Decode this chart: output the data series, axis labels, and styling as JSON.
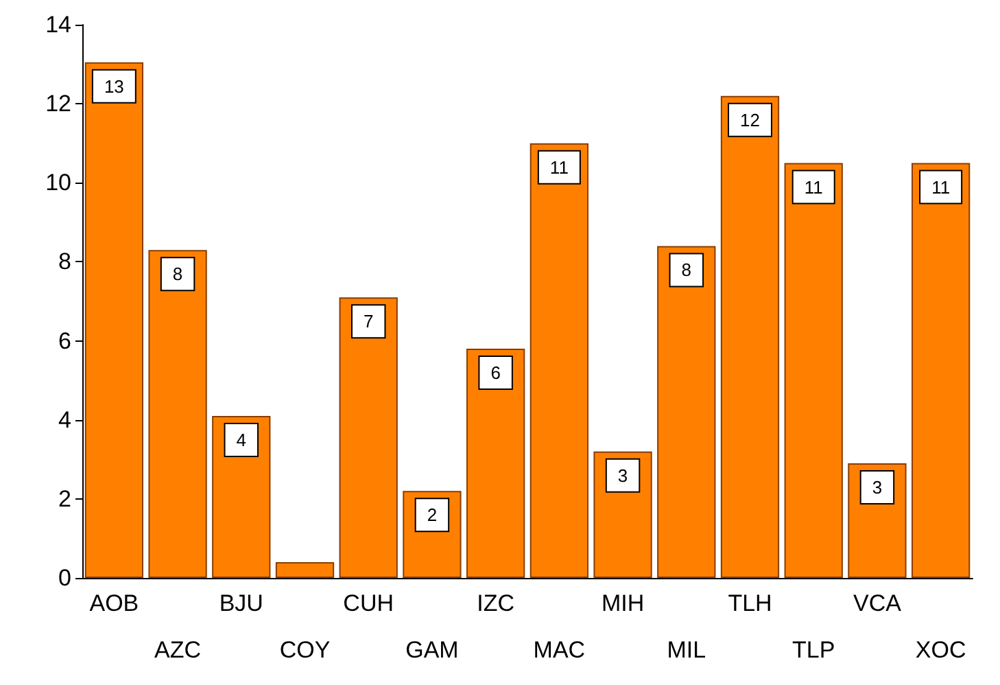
{
  "chart_data": {
    "type": "bar",
    "categories": [
      "AOB",
      "AZC",
      "BJU",
      "COY",
      "CUH",
      "GAM",
      "IZC",
      "MAC",
      "MIH",
      "MIL",
      "TLH",
      "TLP",
      "VCA",
      "XOC"
    ],
    "values": [
      13.05,
      8.3,
      4.1,
      0.4,
      7.1,
      2.2,
      5.8,
      11.0,
      3.2,
      8.4,
      12.2,
      10.5,
      2.9,
      10.5
    ],
    "value_labels": [
      "13",
      "8",
      "4",
      null,
      "7",
      "2",
      "6",
      "11",
      "3",
      "8",
      "12",
      "11",
      "3",
      "11"
    ],
    "color": "#ff8000",
    "ylim": [
      0,
      14
    ],
    "yticks": [
      0,
      2,
      4,
      6,
      8,
      10,
      12,
      14
    ]
  }
}
